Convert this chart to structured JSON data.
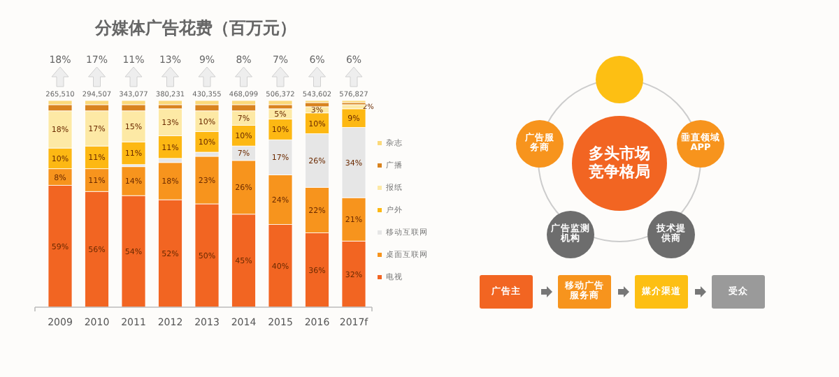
{
  "chart_data": [
    {
      "type": "bar",
      "stacked": true,
      "title": "分媒体广告花费（百万元）",
      "categories": [
        "2009",
        "2010",
        "2011",
        "2012",
        "2013",
        "2014",
        "2015",
        "2016",
        "2017f"
      ],
      "tick_labels": "x",
      "legend": "right",
      "series": [
        {
          "name": "电视",
          "color": "#f26522",
          "values": [
            59,
            56,
            54,
            52,
            50,
            45,
            40,
            36,
            32
          ],
          "value_labels": [
            "59%",
            "56%",
            "54%",
            "52%",
            "50%",
            "45%",
            "40%",
            "36%",
            "32%"
          ]
        },
        {
          "name": "桌面互联网",
          "color": "#f7941d",
          "values": [
            8,
            11,
            14,
            18,
            23,
            26,
            24,
            22,
            21
          ],
          "value_labels": [
            "8%",
            "11%",
            "14%",
            "18%",
            "23%",
            "26%",
            "24%",
            "22%",
            "21%"
          ]
        },
        {
          "name": "移动互联网",
          "color": "#e6e6e6",
          "values": [
            0,
            0,
            1,
            2,
            2,
            7,
            17,
            26,
            34
          ],
          "value_labels": [
            null,
            null,
            null,
            null,
            null,
            "7%",
            "17%",
            "26%",
            "34%"
          ]
        },
        {
          "name": "户外",
          "color": "#fdb813",
          "values": [
            10,
            11,
            11,
            11,
            10,
            10,
            10,
            10,
            9
          ],
          "value_labels": [
            "10%",
            "11%",
            "11%",
            "11%",
            "10%",
            "10%",
            "10%",
            "10%",
            "9%"
          ]
        },
        {
          "name": "报纸",
          "color": "#fde9a5",
          "values": [
            18,
            17,
            15,
            13,
            10,
            7,
            5,
            3,
            2
          ],
          "value_labels": [
            "18%",
            "17%",
            "15%",
            "13%",
            "10%",
            "7%",
            "5%",
            "3%",
            "2%"
          ]
        },
        {
          "name": "广播",
          "color": "#d9831f",
          "values": [
            3,
            3,
            3,
            2,
            3,
            3,
            2,
            2,
            1
          ]
        },
        {
          "name": "杂志",
          "color": "#fbd97a",
          "values": [
            2,
            2,
            2,
            2,
            2,
            2,
            2,
            1,
            1
          ]
        }
      ],
      "annotations": [
        "18%",
        "17%",
        "11%",
        "13%",
        "9%",
        "8%",
        "7%",
        "6%",
        "6%",
        "265,510",
        "294,507",
        "343,077",
        "380,231",
        "430,355",
        "468,099",
        "506,372",
        "543,602",
        "576,827"
      ]
    },
    {
      "type": "other",
      "annotations": [
        "多头市场竞争格局",
        "垂直领域APP",
        "技术提供商",
        "广告监测机构",
        "广告服务商",
        "广告主",
        "移动广告服务商",
        "媒介渠道",
        "受众"
      ]
    }
  ]
}
